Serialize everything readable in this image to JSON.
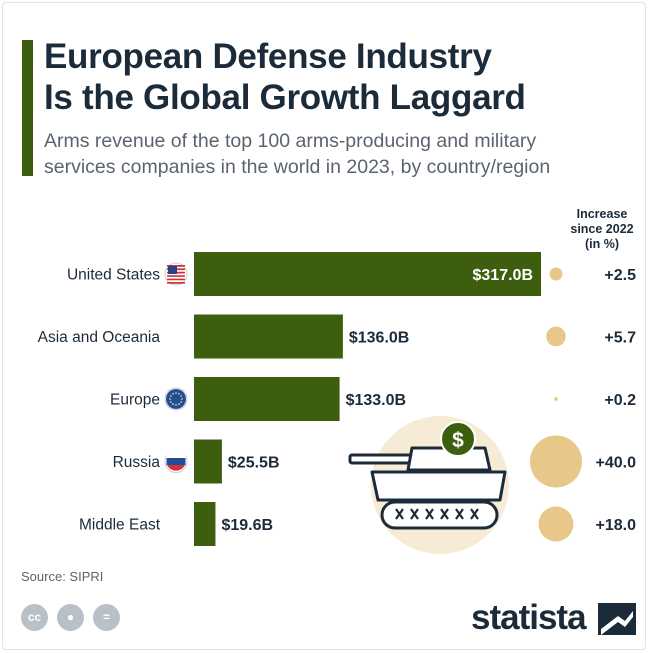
{
  "title_line1": "European Defense Industry",
  "title_line2": "Is the Global Growth Laggard",
  "subtitle_line1": "Arms revenue of the top 100 arms-producing and military",
  "subtitle_line2": "services companies in the world in 2023, by country/region",
  "increase_header": [
    "Increase",
    "since 2022",
    "(in %)"
  ],
  "source": "Source: SIPRI",
  "brand": "statista",
  "colors": {
    "bar": "#3d5e0f",
    "bubble": "#e7c888",
    "tank_bg": "#f6ebd5",
    "text_dark": "#1c2b39"
  },
  "icons": [
    "cc-icon",
    "person-icon",
    "equals-icon",
    "tank-icon",
    "dollar-icon"
  ],
  "chart_data": {
    "type": "bar",
    "orientation": "horizontal",
    "title": "European Defense Industry Is the Global Growth Laggard",
    "categories": [
      "United States",
      "Asia and Oceania",
      "Europe",
      "Russia",
      "Middle East"
    ],
    "flags": [
      "us-flag-icon",
      "",
      "eu-flag-icon",
      "russia-flag-icon",
      ""
    ],
    "values": [
      317.0,
      136.0,
      133.0,
      25.5,
      19.6
    ],
    "value_labels": [
      "$317.0B",
      "$136.0B",
      "$133.0B",
      "$25.5B",
      "$19.6B"
    ],
    "unit": "billion USD",
    "increase": [
      2.5,
      5.7,
      0.2,
      40.0,
      18.0
    ],
    "increase_labels": [
      "+2.5",
      "+5.7",
      "+0.2",
      "+40.0",
      "+18.0"
    ],
    "xlim": [
      0,
      317
    ]
  }
}
